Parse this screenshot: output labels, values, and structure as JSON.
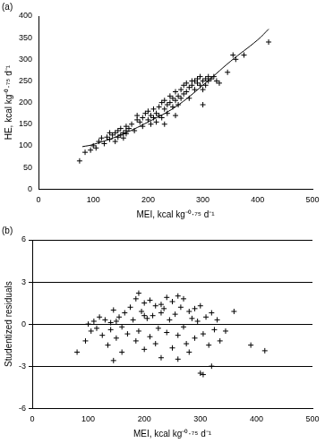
{
  "chart_data": [
    {
      "type": "scatter",
      "title": "(a)",
      "x_label": "MEI, kcal kg⁻⁰·⁷⁵ d⁻¹",
      "y_label": "HE, kcal kg⁻⁰·⁷⁵ d⁻¹",
      "xlim": [
        0,
        500
      ],
      "xticks": [
        0,
        100,
        200,
        300,
        400,
        500
      ],
      "ylim": [
        0,
        400
      ],
      "yticks": [
        0,
        50,
        100,
        150,
        200,
        250,
        300,
        350,
        400
      ],
      "grid": false,
      "series": [
        {
          "type": "scatter",
          "marker": "cross",
          "color": "#000000",
          "x": [
            75,
            85,
            95,
            100,
            105,
            110,
            115,
            120,
            125,
            130,
            135,
            140,
            140,
            145,
            145,
            150,
            150,
            155,
            155,
            160,
            160,
            165,
            170,
            175,
            180,
            185,
            190,
            190,
            195,
            200,
            200,
            205,
            205,
            210,
            210,
            215,
            215,
            220,
            220,
            225,
            225,
            230,
            230,
            235,
            235,
            240,
            240,
            245,
            245,
            250,
            250,
            255,
            255,
            260,
            260,
            265,
            265,
            270,
            270,
            275,
            275,
            280,
            280,
            285,
            285,
            290,
            290,
            295,
            295,
            300,
            300,
            300,
            305,
            305,
            310,
            310,
            315,
            320,
            325,
            330,
            345,
            355,
            360,
            375,
            420,
            250,
            230,
            180,
            160,
            130
          ],
          "y": [
            65,
            85,
            90,
            100,
            95,
            110,
            118,
            105,
            120,
            115,
            125,
            130,
            110,
            120,
            135,
            125,
            140,
            118,
            130,
            128,
            145,
            140,
            150,
            135,
            160,
            155,
            165,
            145,
            175,
            160,
            180,
            150,
            170,
            185,
            165,
            155,
            175,
            190,
            170,
            165,
            200,
            185,
            205,
            175,
            195,
            200,
            215,
            190,
            210,
            205,
            225,
            215,
            195,
            230,
            210,
            220,
            240,
            225,
            245,
            235,
            210,
            240,
            250,
            230,
            250,
            245,
            255,
            240,
            260,
            250,
            230,
            195,
            255,
            240,
            260,
            250,
            255,
            260,
            250,
            245,
            270,
            310,
            300,
            310,
            340,
            170,
            150,
            170,
            135,
            130
          ]
        },
        {
          "type": "line",
          "line_style": "solid",
          "color": "#000000",
          "x": [
            80,
            100,
            150,
            200,
            250,
            300,
            350,
            400,
            420
          ],
          "y": [
            98,
            103,
            125,
            155,
            190,
            240,
            295,
            345,
            370
          ]
        }
      ]
    },
    {
      "type": "scatter",
      "title": "(b)",
      "x_label": "MEI, kcal kg⁻⁰·⁷⁵ d⁻¹",
      "y_label": "Studentized residuals",
      "xlim": [
        0,
        500
      ],
      "xticks": [
        0,
        100,
        200,
        300,
        400,
        500
      ],
      "ylim": [
        -6,
        6
      ],
      "yticks": [
        -6,
        -3,
        0,
        3,
        6
      ],
      "grid": true,
      "series": [
        {
          "type": "scatter",
          "marker": "cross",
          "color": "#000000",
          "x": [
            80,
            95,
            100,
            105,
            110,
            115,
            120,
            125,
            130,
            135,
            140,
            140,
            145,
            145,
            150,
            150,
            155,
            160,
            165,
            170,
            175,
            180,
            185,
            185,
            190,
            190,
            195,
            200,
            200,
            205,
            210,
            210,
            215,
            220,
            220,
            225,
            230,
            230,
            235,
            240,
            240,
            245,
            250,
            250,
            255,
            260,
            260,
            265,
            270,
            270,
            275,
            280,
            280,
            285,
            290,
            290,
            295,
            300,
            300,
            305,
            305,
            310,
            315,
            320,
            320,
            325,
            330,
            335,
            345,
            360,
            390,
            415,
            160,
            260,
            200,
            230
          ],
          "y": [
            -2,
            -1.2,
            0,
            -0.5,
            0.2,
            -0.3,
            0.5,
            -0.8,
            0.3,
            -1.5,
            0.1,
            -0.4,
            1,
            -2.6,
            0.2,
            -1,
            0.5,
            -0.2,
            0.8,
            -0.7,
            1.2,
            0.3,
            1.8,
            -1.2,
            2.2,
            -0.5,
            0.9,
            1.5,
            -1.8,
            0.4,
            1.7,
            -0.9,
            0.6,
            1.3,
            -1.4,
            -0.3,
            0.8,
            -2.4,
            1.1,
            1.9,
            -0.6,
            0.3,
            1.6,
            -1.7,
            0.7,
            2,
            -0.8,
            1.2,
            -0.2,
            1.8,
            -1.4,
            0.9,
            -2,
            0.4,
            1.1,
            -1,
            0.2,
            -3.5,
            1.3,
            -0.7,
            -3.6,
            0.5,
            -1.5,
            -3,
            0.8,
            -0.4,
            0.3,
            -1.2,
            -0.5,
            0.9,
            -1.5,
            -1.9,
            -2,
            -2.5,
            0.6,
            1.4
          ]
        }
      ]
    }
  ]
}
